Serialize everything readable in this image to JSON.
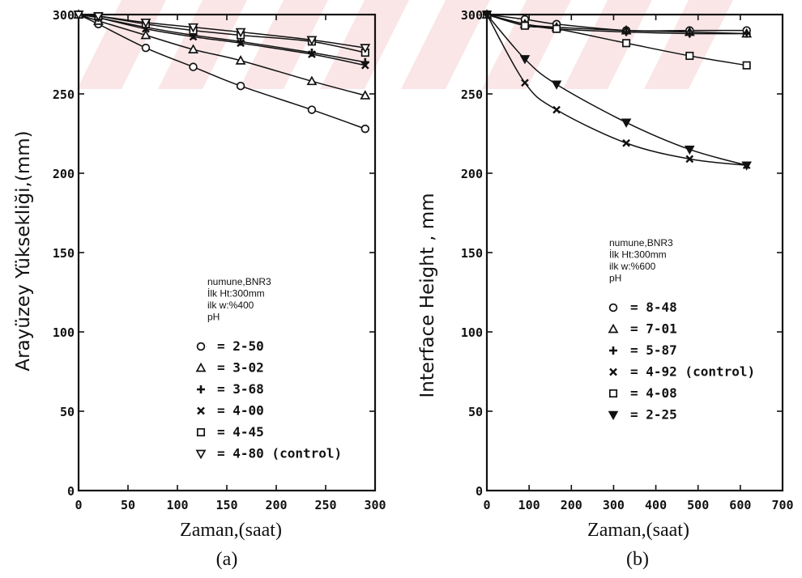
{
  "chart_data": [
    {
      "type": "line",
      "panel_label": "(a)",
      "xlabel": "Zaman,(saat)",
      "ylabel": "Arayüzey Yüksekliği,(mm)",
      "xlim": [
        0,
        300
      ],
      "ylim": [
        0,
        300
      ],
      "xticks": [
        0,
        50,
        100,
        150,
        200,
        250,
        300
      ],
      "yticks": [
        0,
        50,
        100,
        150,
        200,
        250,
        300
      ],
      "grid": false,
      "legend_position": "center",
      "notes": [
        "numune,BNR3",
        "İlk Ht:300mm",
        "ilk w:%400",
        "pH"
      ],
      "series": [
        {
          "name": "2-50",
          "marker": "circle",
          "x": [
            0,
            20,
            68,
            116,
            164,
            236,
            290
          ],
          "y": [
            300,
            294,
            279,
            267,
            255,
            240,
            228
          ]
        },
        {
          "name": "3-02",
          "marker": "triangle-up",
          "x": [
            0,
            20,
            68,
            116,
            164,
            236,
            290
          ],
          "y": [
            300,
            296,
            287,
            278,
            271,
            258,
            249
          ]
        },
        {
          "name": "3-68",
          "marker": "plus",
          "x": [
            0,
            20,
            68,
            116,
            164,
            236,
            290
          ],
          "y": [
            300,
            298,
            292,
            287,
            283,
            276,
            270
          ]
        },
        {
          "name": "4-00",
          "marker": "x",
          "x": [
            0,
            20,
            68,
            116,
            164,
            236,
            290
          ],
          "y": [
            300,
            298,
            291,
            286,
            282,
            275,
            268
          ]
        },
        {
          "name": "4-45",
          "marker": "square",
          "x": [
            0,
            20,
            68,
            116,
            164,
            236,
            290
          ],
          "y": [
            300,
            299,
            294,
            290,
            287,
            283,
            276
          ]
        },
        {
          "name": "4-80 (control)",
          "marker": "triangle-down",
          "x": [
            0,
            20,
            68,
            116,
            164,
            236,
            290
          ],
          "y": [
            300,
            299,
            295,
            292,
            289,
            284,
            279
          ]
        }
      ]
    },
    {
      "type": "line",
      "panel_label": "(b)",
      "xlabel": "Zaman,(saat)",
      "ylabel": "Interface   Height , mm",
      "xlim": [
        0,
        700
      ],
      "ylim": [
        0,
        300
      ],
      "xticks": [
        0,
        100,
        200,
        300,
        400,
        500,
        600,
        700
      ],
      "yticks": [
        0,
        50,
        100,
        150,
        200,
        250,
        300
      ],
      "grid": false,
      "legend_position": "center-right",
      "notes": [
        "numune,BNR3",
        "İlk Ht:300mm",
        "ilk w:%600",
        "pH"
      ],
      "series": [
        {
          "name": "8-48",
          "marker": "circle",
          "x": [
            0,
            90,
            165,
            330,
            480,
            615
          ],
          "y": [
            300,
            297,
            294,
            290,
            290,
            290
          ]
        },
        {
          "name": "7-01",
          "marker": "triangle-up",
          "x": [
            0,
            90,
            165,
            330,
            480,
            615
          ],
          "y": [
            300,
            294,
            292,
            290,
            289,
            288
          ]
        },
        {
          "name": "5-87",
          "marker": "plus",
          "x": [
            0,
            90,
            165,
            330,
            480,
            615
          ],
          "y": [
            300,
            294,
            291,
            289,
            288,
            288
          ]
        },
        {
          "name": "4-92 (control)",
          "marker": "x",
          "x": [
            0,
            90,
            165,
            330,
            480,
            615
          ],
          "y": [
            300,
            257,
            240,
            219,
            209,
            205
          ]
        },
        {
          "name": "4-08",
          "marker": "square",
          "x": [
            0,
            90,
            165,
            330,
            480,
            615
          ],
          "y": [
            300,
            293,
            291,
            282,
            274,
            268
          ]
        },
        {
          "name": "2-25",
          "marker": "triangle-down-filled",
          "x": [
            0,
            90,
            165,
            330,
            480,
            615
          ],
          "y": [
            300,
            272,
            256,
            232,
            215,
            205
          ]
        }
      ]
    }
  ]
}
